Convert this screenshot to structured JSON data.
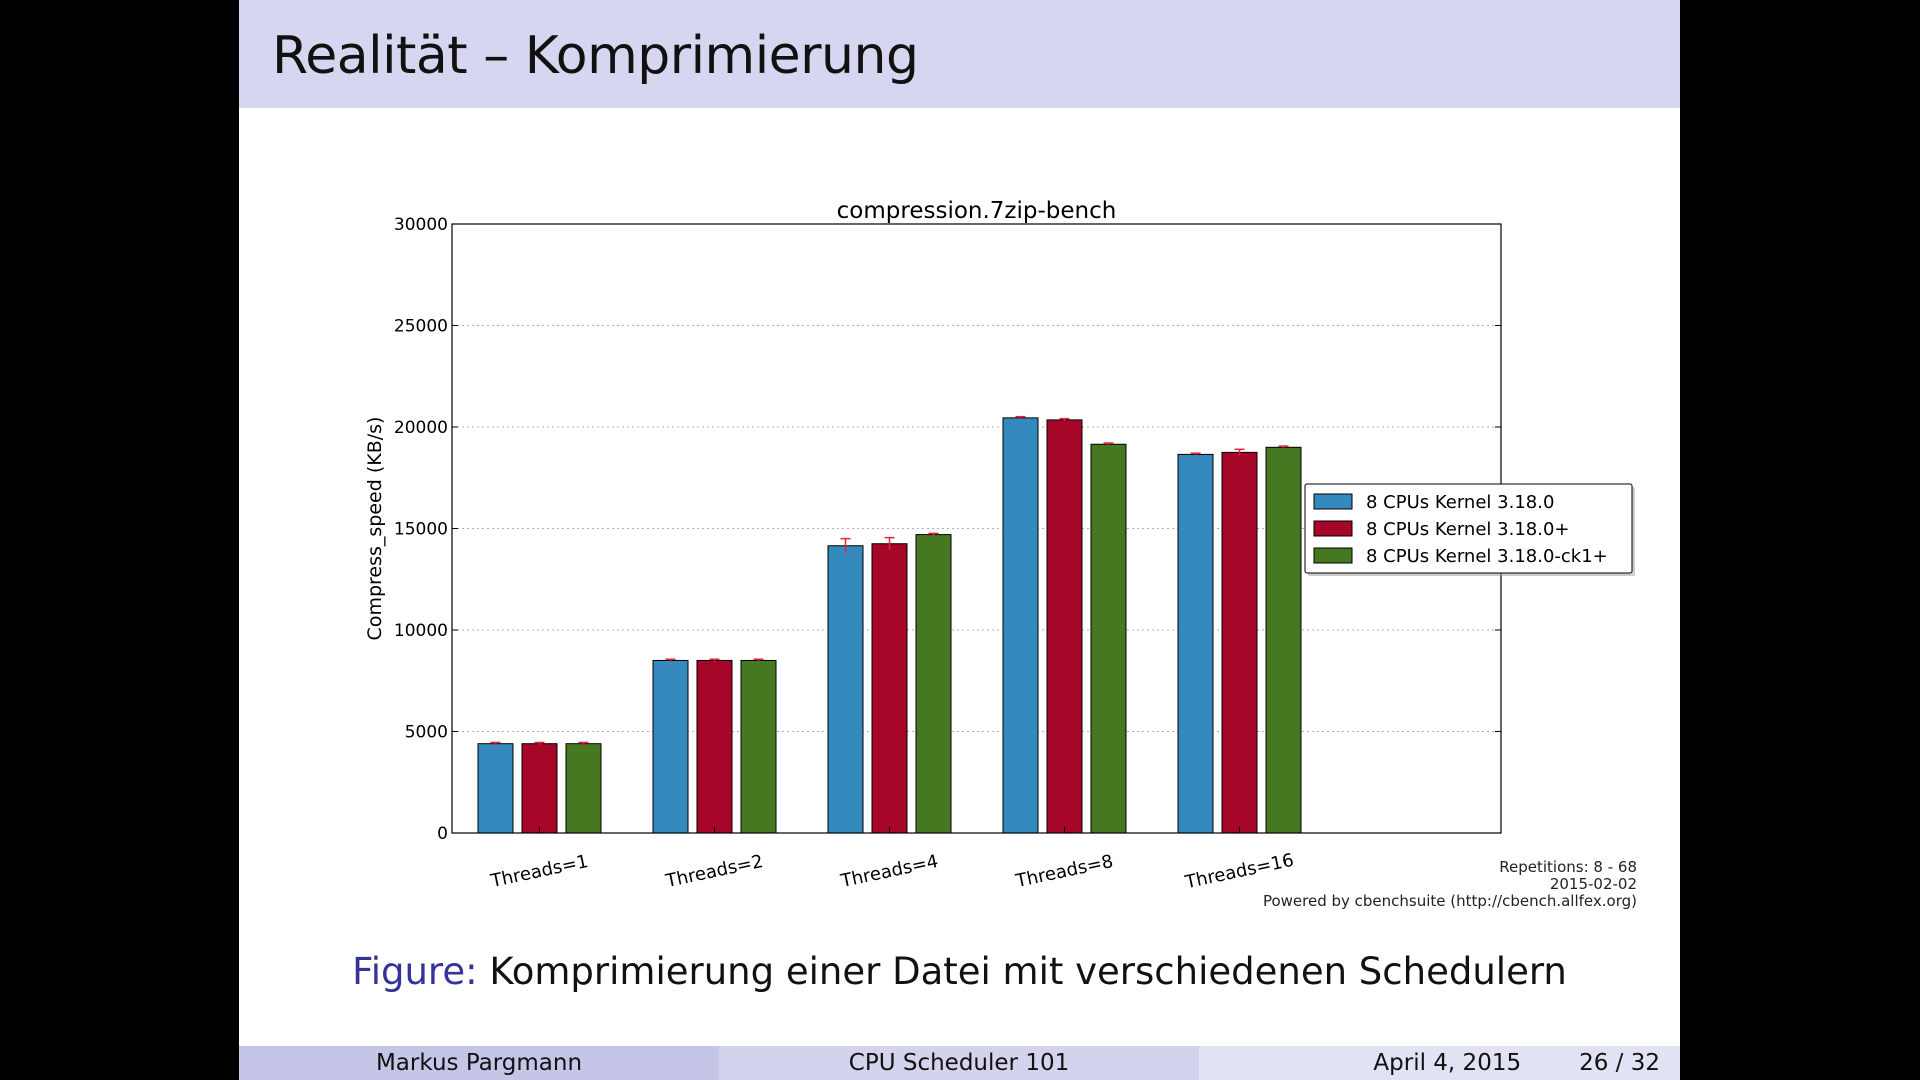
{
  "slide": {
    "title": "Realität – Komprimierung",
    "caption_label": "Figure:",
    "caption_text": "Komprimierung einer Datei mit verschiedenen Schedulern",
    "footer": {
      "author": "Markus Pargmann",
      "talk": "CPU Scheduler 101",
      "date": "April 4, 2015",
      "page": "26 / 32"
    }
  },
  "chart_data": {
    "type": "bar",
    "title": "compression.7zip-bench",
    "xlabel": "",
    "ylabel": "Compress_speed (KB/s)",
    "ylim": [
      0,
      30000
    ],
    "yticks": [
      0,
      5000,
      10000,
      15000,
      20000,
      25000,
      30000
    ],
    "grid": true,
    "legend_position": "right",
    "categories": [
      "Threads=1",
      "Threads=2",
      "Threads=4",
      "Threads=8",
      "Threads=16"
    ],
    "series": [
      {
        "name": "8 CPUs Kernel 3.18.0",
        "color": "#348abd",
        "values": [
          4400,
          8500,
          14150,
          20450,
          18650
        ],
        "errors": [
          0,
          0,
          350,
          0,
          0
        ]
      },
      {
        "name": "8 CPUs Kernel 3.18.0+",
        "color": "#a60628",
        "values": [
          4400,
          8500,
          14250,
          20350,
          18750
        ],
        "errors": [
          0,
          0,
          300,
          0,
          150
        ]
      },
      {
        "name": "8 CPUs Kernel 3.18.0-ck1+",
        "color": "#467821",
        "values": [
          4400,
          8500,
          14700,
          19150,
          19000
        ],
        "errors": [
          0,
          0,
          0,
          0,
          0
        ]
      }
    ],
    "annotations": [
      "Repetitions: 8 - 68",
      "2015-02-02",
      "Powered by cbenchsuite (http://cbench.allfex.org)"
    ]
  }
}
